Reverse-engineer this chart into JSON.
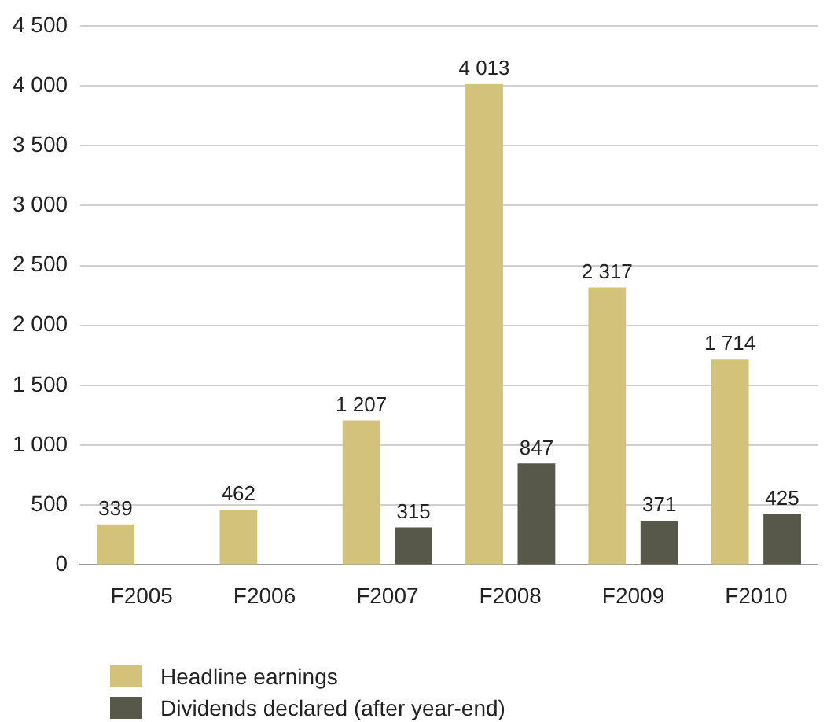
{
  "chart_data": {
    "type": "bar",
    "categories": [
      "F2005",
      "F2006",
      "F2007",
      "F2008",
      "F2009",
      "F2010"
    ],
    "series": [
      {
        "name": "Headline earnings",
        "color": "#d3c37a",
        "values": [
          339,
          462,
          1207,
          4013,
          2317,
          1714
        ],
        "value_labels": [
          "339",
          "462",
          "1 207",
          "4 013",
          "2 317",
          "1 714"
        ]
      },
      {
        "name": "Dividends declared (after year-end)",
        "color": "#58584a",
        "values": [
          null,
          null,
          315,
          847,
          371,
          425
        ],
        "value_labels": [
          null,
          null,
          "315",
          "847",
          "371",
          "425"
        ]
      }
    ],
    "ylim": [
      0,
      4500
    ],
    "yticks": [
      0,
      500,
      {
        "value": 1000,
        "label": "1 000"
      },
      {
        "value": 1500,
        "label": "1 500"
      },
      {
        "value": 2000,
        "label": "2 000"
      },
      {
        "value": 2500,
        "label": "2 500"
      },
      {
        "value": 3000,
        "label": "3 000"
      },
      {
        "value": 3500,
        "label": "3 500"
      },
      {
        "value": 4000,
        "label": "4 000"
      },
      {
        "value": 4500,
        "label": "4 500"
      }
    ],
    "grid": "y",
    "legend": "bottom left"
  }
}
